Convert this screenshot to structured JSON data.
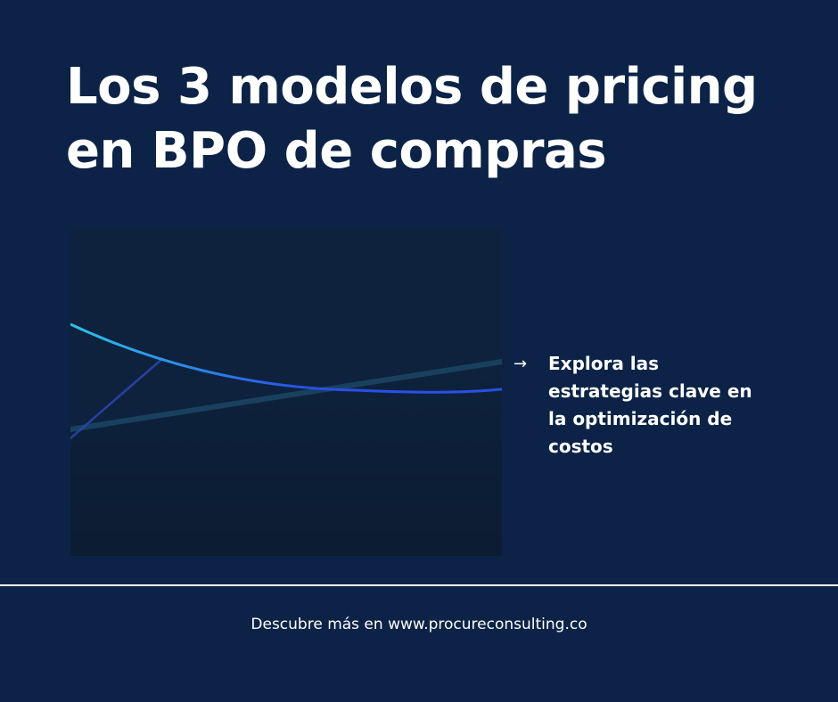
{
  "colors": {
    "background": "#0c2347",
    "panel": "#0e223d",
    "divider": "#ffffff",
    "text": "#ffffff",
    "curve_start": "#2fc1ec",
    "curve_end": "#2a4fe6",
    "band": "#1d4a68"
  },
  "title": {
    "line1": "Los 3 modelos de pricing",
    "line2": "en BPO de compras"
  },
  "callout": {
    "icon": "arrow-right-icon",
    "arrow": "→",
    "line1": "Explora las",
    "line2": "estrategias clave en",
    "line3": "la optimización de",
    "line4": "costos"
  },
  "footer": {
    "text": "Descubre más en www.procureconsulting.co"
  }
}
